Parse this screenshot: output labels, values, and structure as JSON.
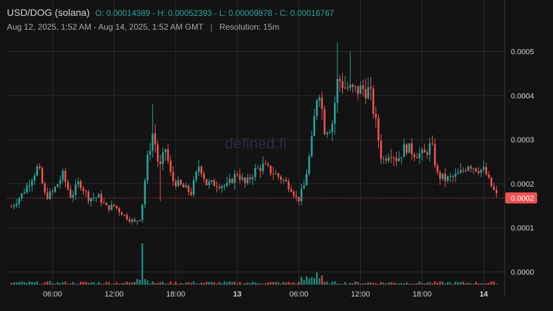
{
  "header": {
    "symbol": "USD/DOG (solana)",
    "ohlc": "O: 0.00014389 - H: 0.00052393 - L: 0.00009878 - C: 0.00016767",
    "range": "Aug 12, 2025, 1:52 AM - Aug 14, 2025, 1:52 AM GMT",
    "separator": "|",
    "resolution": "Resolution: 15m"
  },
  "watermark": "defined.fi",
  "colors": {
    "up": "#26a69a",
    "down": "#ef5350",
    "background": "#131313",
    "grid": "#2a2a2a",
    "price_label": "#ef5350"
  },
  "chart_data": {
    "type": "candlestick",
    "x_tick_labels": [
      {
        "label": "06:00",
        "hours": 6
      },
      {
        "label": "12:00",
        "hours": 12
      },
      {
        "label": "18:00",
        "hours": 18
      },
      {
        "label": "13",
        "hours": 24,
        "bold": true
      },
      {
        "label": "06:00",
        "hours": 30
      },
      {
        "label": "12:00",
        "hours": 36
      },
      {
        "label": "18:00",
        "hours": 42
      },
      {
        "label": "14",
        "hours": 48,
        "bold": true
      }
    ],
    "y_tick_labels": [
      "0.0000",
      "0.0001",
      "0.0002",
      "0.0003",
      "0.0004",
      "0.0005"
    ],
    "y_ticks": [
      0.0,
      0.0001,
      0.0002,
      0.0003,
      0.0004,
      0.0005
    ],
    "ylim": [
      -3e-05,
      0.000595
    ],
    "current_price_label": "0.0002",
    "current_price": 0.000168,
    "volume_spike_hours": [
      14.8,
      30.7,
      31.7
    ],
    "close_path": [
      [
        2.0,
        0.000148
      ],
      [
        3.0,
        0.000175
      ],
      [
        4.0,
        0.000215
      ],
      [
        4.6,
        0.00024
      ],
      [
        5.3,
        0.00017
      ],
      [
        6.0,
        0.00018
      ],
      [
        7.0,
        0.00022
      ],
      [
        7.8,
        0.00017
      ],
      [
        8.6,
        0.000205
      ],
      [
        9.5,
        0.000168
      ],
      [
        10.5,
        0.00017
      ],
      [
        11.3,
        0.000145
      ],
      [
        12.0,
        0.00015
      ],
      [
        13.0,
        0.000128
      ],
      [
        14.0,
        0.000112
      ],
      [
        14.6,
        0.000125
      ],
      [
        15.2,
        0.00025
      ],
      [
        15.8,
        0.00032
      ],
      [
        16.4,
        0.00023
      ],
      [
        17.0,
        0.00028
      ],
      [
        17.6,
        0.00021
      ],
      [
        18.5,
        0.000195
      ],
      [
        19.5,
        0.00018
      ],
      [
        20.3,
        0.000245
      ],
      [
        21.0,
        0.0002
      ],
      [
        22.0,
        0.0002
      ],
      [
        23.0,
        0.000195
      ],
      [
        24.0,
        0.000225
      ],
      [
        24.8,
        0.000198
      ],
      [
        25.7,
        0.00023
      ],
      [
        26.5,
        0.00024
      ],
      [
        27.5,
        0.000225
      ],
      [
        28.3,
        0.000212
      ],
      [
        29.3,
        0.00019
      ],
      [
        29.9,
        0.00016
      ],
      [
        30.5,
        0.000195
      ],
      [
        31.2,
        0.000285
      ],
      [
        31.9,
        0.00043
      ],
      [
        32.5,
        0.000325
      ],
      [
        33.2,
        0.00033
      ],
      [
        33.8,
        0.00044
      ],
      [
        34.5,
        0.00042
      ],
      [
        35.3,
        0.00041
      ],
      [
        36.2,
        0.000415
      ],
      [
        36.9,
        0.00041
      ],
      [
        37.4,
        0.00035
      ],
      [
        38.1,
        0.00025
      ],
      [
        38.9,
        0.000275
      ],
      [
        39.6,
        0.000255
      ],
      [
        40.4,
        0.000285
      ],
      [
        41.2,
        0.00027
      ],
      [
        42.2,
        0.000265
      ],
      [
        42.9,
        0.00029
      ],
      [
        43.5,
        0.00022
      ],
      [
        44.3,
        0.00021
      ],
      [
        45.1,
        0.000215
      ],
      [
        45.8,
        0.000225
      ],
      [
        46.5,
        0.000245
      ],
      [
        47.3,
        0.000235
      ],
      [
        48.1,
        0.00023
      ],
      [
        48.6,
        0.0002
      ],
      [
        49.4,
        0.000168
      ]
    ]
  }
}
